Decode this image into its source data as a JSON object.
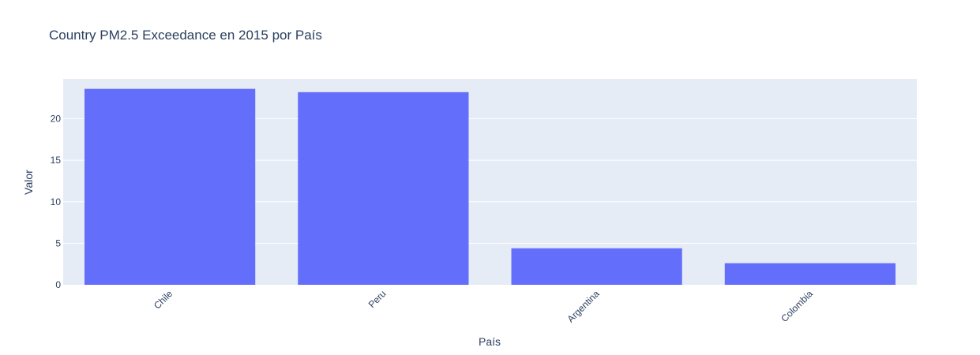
{
  "chart_data": {
    "type": "bar",
    "title": "Country PM2.5 Exceedance en 2015 por País",
    "xlabel": "País",
    "ylabel": "Valor",
    "categories": [
      "Chile",
      "Peru",
      "Argentina",
      "Colombia"
    ],
    "values": [
      23.6,
      23.2,
      4.4,
      2.6
    ],
    "ylim": [
      0,
      24.8
    ],
    "yticks": [
      0,
      5,
      10,
      15,
      20
    ],
    "grid": true,
    "colors": {
      "bar": "#636efa",
      "plot_background": "#e5ecf6",
      "gridline": "#ffffff",
      "text": "#2a3f5f"
    }
  }
}
